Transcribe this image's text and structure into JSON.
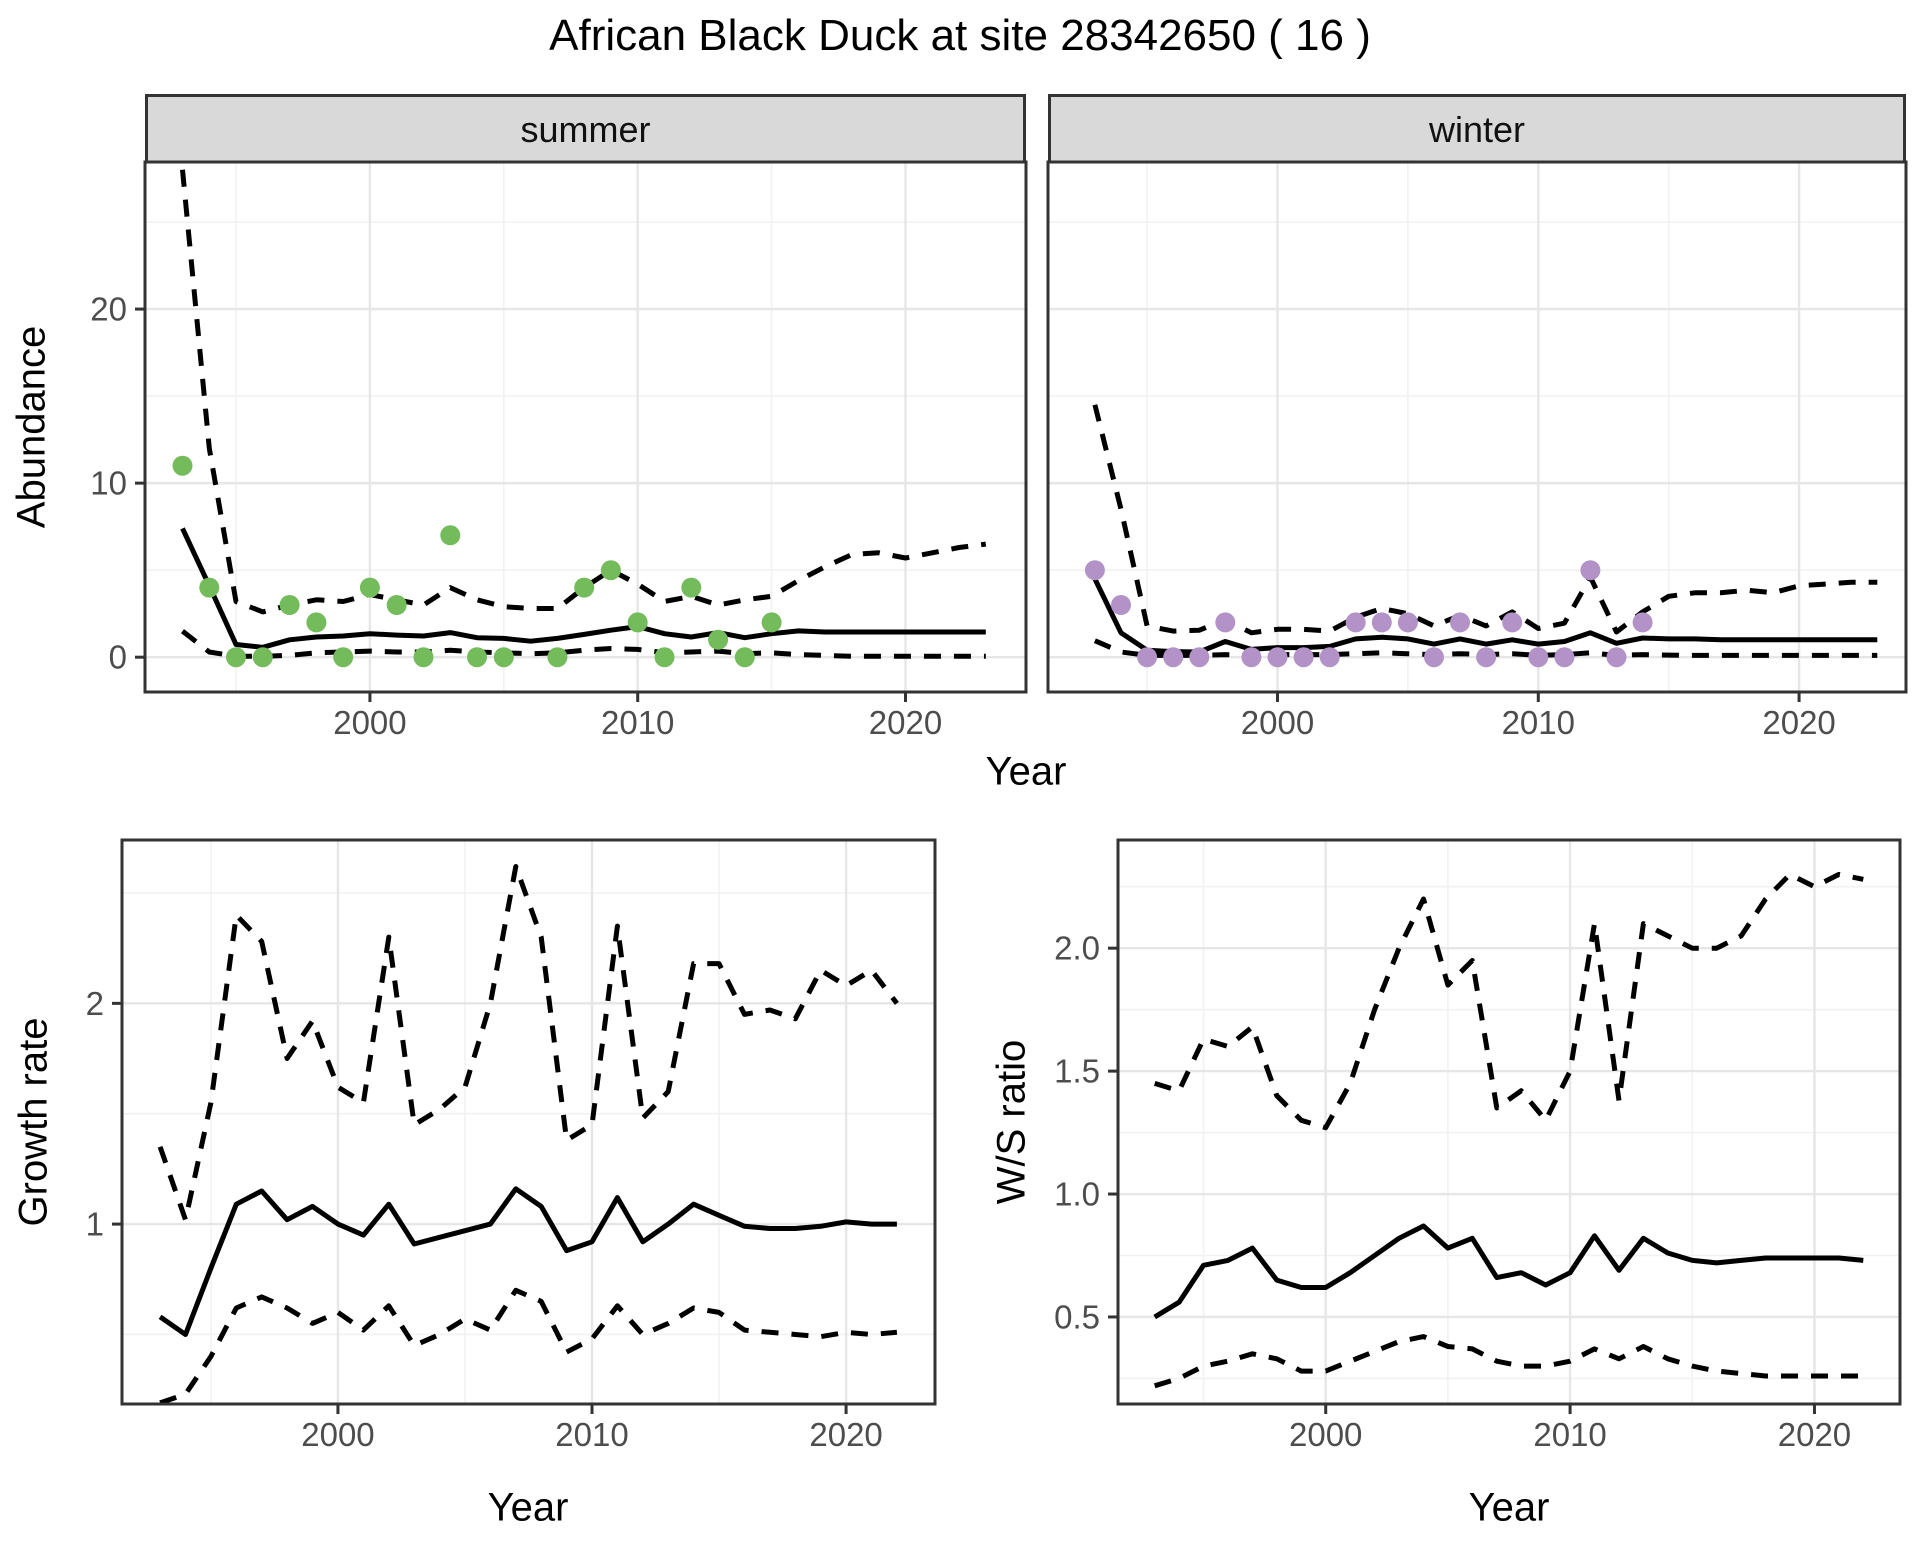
{
  "title": "African Black Duck at site 28342650 ( 16 )",
  "palette": {
    "summer_point": "#73BB5B",
    "winter_point": "#B392C7",
    "line": "#000000",
    "panel_border": "#333333",
    "grid_major": "#E6E6E6",
    "grid_minor": "#F2F2F2",
    "tick_label": "#4D4D4D",
    "strip_bg": "#D9D9D9"
  },
  "chart_data": [
    {
      "id": "summer",
      "type": "line+scatter",
      "facet": "summer",
      "ylabel": "Abundance",
      "xlabel": "Year",
      "xlim": [
        1991.6,
        2024.5
      ],
      "ylim": [
        -2.0,
        28.45
      ],
      "xticks": [
        2000,
        2010,
        2020
      ],
      "xtick_labels": [
        "2000",
        "2010",
        "2020"
      ],
      "yticks": [
        0,
        10,
        20
      ],
      "ytick_labels": [
        "0",
        "10",
        "20"
      ],
      "x_minor": [
        1995,
        2005,
        2015
      ],
      "y_minor": [
        5,
        15,
        25
      ],
      "fit_years": [
        1993,
        1994,
        1995,
        1996,
        1997,
        1998,
        1999,
        2000,
        2001,
        2002,
        2003,
        2004,
        2005,
        2006,
        2007,
        2008,
        2009,
        2010,
        2011,
        2012,
        2013,
        2014,
        2015,
        2016,
        2017,
        2018,
        2019,
        2020,
        2021,
        2022,
        2023
      ],
      "series": [
        {
          "name": "median",
          "style": "solid",
          "values": [
            7.4,
            4.1,
            0.73,
            0.57,
            1.0,
            1.16,
            1.22,
            1.35,
            1.27,
            1.22,
            1.41,
            1.12,
            1.08,
            0.92,
            1.08,
            1.31,
            1.55,
            1.76,
            1.35,
            1.16,
            1.41,
            1.12,
            1.35,
            1.51,
            1.45,
            1.45,
            1.45,
            1.45,
            1.45,
            1.45,
            1.45
          ]
        },
        {
          "name": "upper_ci",
          "style": "dashed",
          "values": [
            28,
            12,
            3.2,
            2.6,
            3.0,
            3.3,
            3.2,
            3.6,
            3.3,
            3.0,
            4.0,
            3.3,
            2.9,
            2.8,
            2.8,
            4.0,
            5.0,
            4.2,
            3.2,
            3.5,
            3.0,
            3.3,
            3.5,
            4.4,
            5.2,
            5.9,
            6.0,
            5.7,
            6.0,
            6.3,
            6.5
          ]
        },
        {
          "name": "lower_ci",
          "style": "dashed",
          "values": [
            1.5,
            0.3,
            0.05,
            0.05,
            0.1,
            0.25,
            0.3,
            0.35,
            0.3,
            0.3,
            0.4,
            0.3,
            0.25,
            0.2,
            0.25,
            0.4,
            0.5,
            0.45,
            0.25,
            0.3,
            0.35,
            0.2,
            0.25,
            0.15,
            0.1,
            0.05,
            0.05,
            0.05,
            0.05,
            0.05,
            0.05
          ]
        }
      ],
      "points": {
        "color": "#73BB5B",
        "years": [
          1993,
          1994,
          1995,
          1996,
          1997,
          1998,
          1999,
          2000,
          2001,
          2002,
          2003,
          2004,
          2005,
          2007,
          2008,
          2009,
          2010,
          2011,
          2012,
          2013,
          2014,
          2015
        ],
        "values": [
          11,
          4,
          0,
          0,
          3,
          2,
          0,
          4,
          3,
          0,
          7,
          0,
          0,
          0,
          4,
          5,
          2,
          0,
          4,
          1,
          0,
          2
        ]
      }
    },
    {
      "id": "winter",
      "type": "line+scatter",
      "facet": "winter",
      "ylabel": "Abundance",
      "xlabel": "Year",
      "xlim": [
        1991.2,
        2024.1
      ],
      "ylim": [
        -2.0,
        28.45
      ],
      "xticks": [
        2000,
        2010,
        2020
      ],
      "xtick_labels": [
        "2000",
        "2010",
        "2020"
      ],
      "yticks": [
        0,
        10,
        20
      ],
      "ytick_labels": [],
      "x_minor": [
        1995,
        2005,
        2015
      ],
      "y_minor": [
        5,
        15,
        25
      ],
      "fit_years": [
        1993,
        1994,
        1995,
        1996,
        1997,
        1998,
        1999,
        2000,
        2001,
        2002,
        2003,
        2004,
        2005,
        2006,
        2007,
        2008,
        2009,
        2010,
        2011,
        2012,
        2013,
        2014,
        2015,
        2016,
        2017,
        2018,
        2019,
        2020,
        2021,
        2022,
        2023
      ],
      "series": [
        {
          "name": "median",
          "style": "solid",
          "values": [
            4.5,
            1.4,
            0.4,
            0.32,
            0.3,
            0.9,
            0.45,
            0.55,
            0.55,
            0.62,
            1.05,
            1.15,
            1.05,
            0.75,
            1.05,
            0.75,
            1.0,
            0.75,
            0.9,
            1.4,
            0.8,
            1.1,
            1.05,
            1.05,
            1.0,
            1.0,
            1.0,
            1.0,
            1.0,
            1.0,
            1.0
          ]
        },
        {
          "name": "upper_ci",
          "style": "dashed",
          "values": [
            14.5,
            8.5,
            1.8,
            1.5,
            1.55,
            2.15,
            1.4,
            1.6,
            1.6,
            1.5,
            2.3,
            2.8,
            2.5,
            1.8,
            2.4,
            1.8,
            2.6,
            1.65,
            1.95,
            4.6,
            1.45,
            2.6,
            3.5,
            3.7,
            3.7,
            3.85,
            3.7,
            4.1,
            4.2,
            4.3,
            4.3
          ]
        },
        {
          "name": "lower_ci",
          "style": "dashed",
          "values": [
            0.95,
            0.3,
            0.1,
            0.1,
            0.1,
            0.15,
            0.1,
            0.15,
            0.15,
            0.15,
            0.2,
            0.25,
            0.2,
            0.15,
            0.2,
            0.15,
            0.2,
            0.1,
            0.15,
            0.25,
            0.1,
            0.15,
            0.12,
            0.1,
            0.1,
            0.1,
            0.1,
            0.1,
            0.1,
            0.1,
            0.1
          ]
        }
      ],
      "points": {
        "color": "#B392C7",
        "years": [
          1993,
          1994,
          1995,
          1996,
          1997,
          1998,
          1999,
          2000,
          2001,
          2002,
          2003,
          2004,
          2005,
          2006,
          2007,
          2008,
          2009,
          2010,
          2011,
          2012,
          2013,
          2014
        ],
        "values": [
          5,
          3,
          0,
          0,
          0,
          2,
          0,
          0,
          0,
          0,
          2,
          2,
          2,
          0,
          2,
          0,
          2,
          0,
          0,
          5,
          0,
          2
        ]
      }
    },
    {
      "id": "growth_rate",
      "type": "line",
      "facet": "",
      "ylabel": "Growth rate",
      "xlabel": "Year",
      "xlim": [
        1991.5,
        2023.5
      ],
      "ylim": [
        0.185,
        2.74
      ],
      "xticks": [
        2000,
        2010,
        2020
      ],
      "xtick_labels": [
        "2000",
        "2010",
        "2020"
      ],
      "yticks": [
        1,
        2
      ],
      "ytick_labels": [
        "1",
        "2"
      ],
      "x_minor": [
        1995,
        2005,
        2015
      ],
      "y_minor": [
        0.5,
        1.5,
        2.5
      ],
      "fit_years": [
        1993,
        1994,
        1995,
        1996,
        1997,
        1998,
        1999,
        2000,
        2001,
        2002,
        2003,
        2004,
        2005,
        2006,
        2007,
        2008,
        2009,
        2010,
        2011,
        2012,
        2013,
        2014,
        2015,
        2016,
        2017,
        2018,
        2019,
        2020,
        2021,
        2022
      ],
      "series": [
        {
          "name": "median",
          "style": "solid",
          "values": [
            0.58,
            0.5,
            0.8,
            1.09,
            1.15,
            1.02,
            1.08,
            1.0,
            0.95,
            1.09,
            0.91,
            0.94,
            0.97,
            1.0,
            1.16,
            1.08,
            0.88,
            0.92,
            1.12,
            0.92,
            1.0,
            1.09,
            1.04,
            0.99,
            0.98,
            0.98,
            0.99,
            1.01,
            1.0,
            1.0
          ]
        },
        {
          "name": "upper_ci",
          "style": "dashed",
          "values": [
            1.35,
            1.02,
            1.55,
            2.4,
            2.28,
            1.75,
            1.92,
            1.62,
            1.55,
            2.3,
            1.45,
            1.52,
            1.62,
            2.0,
            2.62,
            2.3,
            1.38,
            1.45,
            2.35,
            1.48,
            1.6,
            2.18,
            2.18,
            1.95,
            1.97,
            1.93,
            2.15,
            2.08,
            2.15,
            2.0
          ]
        },
        {
          "name": "lower_ci",
          "style": "dashed",
          "values": [
            0.19,
            0.23,
            0.4,
            0.62,
            0.67,
            0.62,
            0.55,
            0.6,
            0.52,
            0.63,
            0.45,
            0.5,
            0.57,
            0.52,
            0.7,
            0.65,
            0.42,
            0.48,
            0.63,
            0.5,
            0.55,
            0.62,
            0.6,
            0.52,
            0.51,
            0.5,
            0.49,
            0.51,
            0.5,
            0.51
          ]
        }
      ],
      "points": null
    },
    {
      "id": "ws_ratio",
      "type": "line",
      "facet": "",
      "ylabel": "W/S ratio",
      "xlabel": "Year",
      "xlim": [
        1991.5,
        2023.5
      ],
      "ylim": [
        0.146,
        2.44
      ],
      "xticks": [
        2000,
        2010,
        2020
      ],
      "xtick_labels": [
        "2000",
        "2010",
        "2020"
      ],
      "yticks": [
        0.5,
        1.0,
        1.5,
        2.0
      ],
      "ytick_labels": [
        "0.5",
        "1.0",
        "1.5",
        "2.0"
      ],
      "x_minor": [
        1995,
        2005,
        2015
      ],
      "y_minor": [
        0.25,
        0.75,
        1.25,
        1.75,
        2.25
      ],
      "fit_years": [
        1993,
        1994,
        1995,
        1996,
        1997,
        1998,
        1999,
        2000,
        2001,
        2002,
        2003,
        2004,
        2005,
        2006,
        2007,
        2008,
        2009,
        2010,
        2011,
        2012,
        2013,
        2014,
        2015,
        2016,
        2017,
        2018,
        2019,
        2020,
        2021,
        2022
      ],
      "series": [
        {
          "name": "median",
          "style": "solid",
          "values": [
            0.5,
            0.56,
            0.71,
            0.73,
            0.78,
            0.65,
            0.62,
            0.62,
            0.68,
            0.75,
            0.82,
            0.87,
            0.78,
            0.82,
            0.66,
            0.68,
            0.63,
            0.68,
            0.83,
            0.69,
            0.82,
            0.76,
            0.73,
            0.72,
            0.73,
            0.74,
            0.74,
            0.74,
            0.74,
            0.73
          ]
        },
        {
          "name": "upper_ci",
          "style": "dashed",
          "values": [
            1.45,
            1.42,
            1.63,
            1.6,
            1.68,
            1.4,
            1.3,
            1.27,
            1.45,
            1.75,
            2.0,
            2.2,
            1.85,
            1.95,
            1.35,
            1.42,
            1.3,
            1.5,
            2.1,
            1.38,
            2.1,
            2.05,
            2.0,
            2.0,
            2.05,
            2.2,
            2.3,
            2.25,
            2.3,
            2.28
          ]
        },
        {
          "name": "lower_ci",
          "style": "dashed",
          "values": [
            0.22,
            0.25,
            0.3,
            0.32,
            0.35,
            0.33,
            0.28,
            0.28,
            0.32,
            0.36,
            0.4,
            0.42,
            0.38,
            0.37,
            0.32,
            0.3,
            0.3,
            0.32,
            0.37,
            0.33,
            0.38,
            0.33,
            0.3,
            0.28,
            0.27,
            0.26,
            0.26,
            0.26,
            0.26,
            0.26
          ]
        }
      ],
      "points": null
    }
  ]
}
